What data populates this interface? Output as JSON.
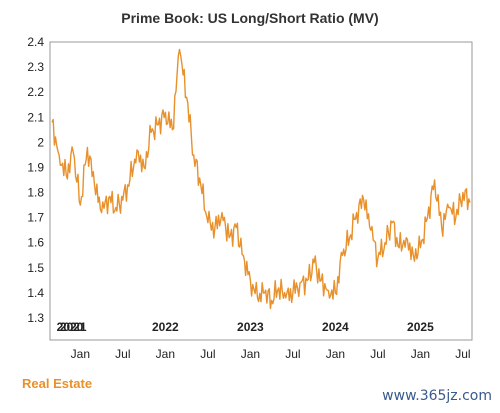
{
  "chart_data": {
    "type": "line",
    "title": "Prime Book: US Long/Short Ratio (MV)",
    "xlabel": "",
    "ylabel": "",
    "ylim": [
      1.3,
      2.4
    ],
    "yticks": [
      1.3,
      1.4,
      1.5,
      1.6,
      1.7,
      1.8,
      1.9,
      2.0,
      2.1,
      2.2,
      2.3,
      2.4
    ],
    "ytick_labels": [
      "1.3",
      "1.4",
      "1.5",
      "1.6",
      "1.7",
      "1.8",
      "1.9",
      "2",
      "2.1",
      "2.2",
      "2.3",
      "2.4"
    ],
    "xlim": [
      "2020-09",
      "2025-08"
    ],
    "year_labels": [
      {
        "label": "2020",
        "date": "2020-09"
      },
      {
        "label": "2021",
        "date": "2020-12"
      },
      {
        "label": "2022",
        "date": "2022-01"
      },
      {
        "label": "2023",
        "date": "2023-01"
      },
      {
        "label": "2024",
        "date": "2024-01"
      },
      {
        "label": "2025",
        "date": "2025-01"
      }
    ],
    "month_labels": [
      {
        "label": "Jan",
        "date": "2021-01"
      },
      {
        "label": "Jul",
        "date": "2021-07"
      },
      {
        "label": "Jan",
        "date": "2022-01"
      },
      {
        "label": "Jul",
        "date": "2022-07"
      },
      {
        "label": "Jan",
        "date": "2023-01"
      },
      {
        "label": "Jul",
        "date": "2023-07"
      },
      {
        "label": "Jan",
        "date": "2024-01"
      },
      {
        "label": "Jul",
        "date": "2024-07"
      },
      {
        "label": "Jan",
        "date": "2025-01"
      },
      {
        "label": "Jul",
        "date": "2025-07"
      }
    ],
    "grid": false,
    "color": "#e8912c",
    "series": [
      {
        "name": "",
        "x": [
          "2020-09",
          "2020-10",
          "2020-11",
          "2020-12",
          "2021-01",
          "2021-02",
          "2021-03",
          "2021-04",
          "2021-05",
          "2021-06",
          "2021-07",
          "2021-08",
          "2021-09",
          "2021-10",
          "2021-11",
          "2021-12",
          "2022-01",
          "2022-02",
          "2022-03",
          "2022-04",
          "2022-05",
          "2022-06",
          "2022-07",
          "2022-08",
          "2022-09",
          "2022-10",
          "2022-11",
          "2022-12",
          "2023-01",
          "2023-02",
          "2023-03",
          "2023-04",
          "2023-05",
          "2023-06",
          "2023-07",
          "2023-08",
          "2023-09",
          "2023-10",
          "2023-11",
          "2023-12",
          "2024-01",
          "2024-02",
          "2024-03",
          "2024-04",
          "2024-05",
          "2024-06",
          "2024-07",
          "2024-08",
          "2024-09",
          "2024-10",
          "2024-11",
          "2024-12",
          "2025-01",
          "2025-02",
          "2025-03",
          "2025-04",
          "2025-05",
          "2025-06",
          "2025-07",
          "2025-08"
        ],
        "values": [
          2.08,
          1.95,
          1.87,
          1.96,
          1.75,
          1.98,
          1.83,
          1.72,
          1.78,
          1.74,
          1.77,
          1.85,
          1.97,
          1.9,
          2.04,
          2.07,
          2.12,
          2.05,
          2.37,
          2.18,
          1.95,
          1.83,
          1.68,
          1.66,
          1.72,
          1.62,
          1.66,
          1.55,
          1.45,
          1.38,
          1.4,
          1.37,
          1.42,
          1.38,
          1.4,
          1.44,
          1.45,
          1.52,
          1.45,
          1.41,
          1.4,
          1.55,
          1.62,
          1.72,
          1.77,
          1.65,
          1.54,
          1.6,
          1.68,
          1.58,
          1.62,
          1.55,
          1.58,
          1.7,
          1.85,
          1.66,
          1.74,
          1.7,
          1.8,
          1.76
        ]
      }
    ]
  },
  "footer_label": "Real Estate",
  "watermark": "www.365jz.com"
}
